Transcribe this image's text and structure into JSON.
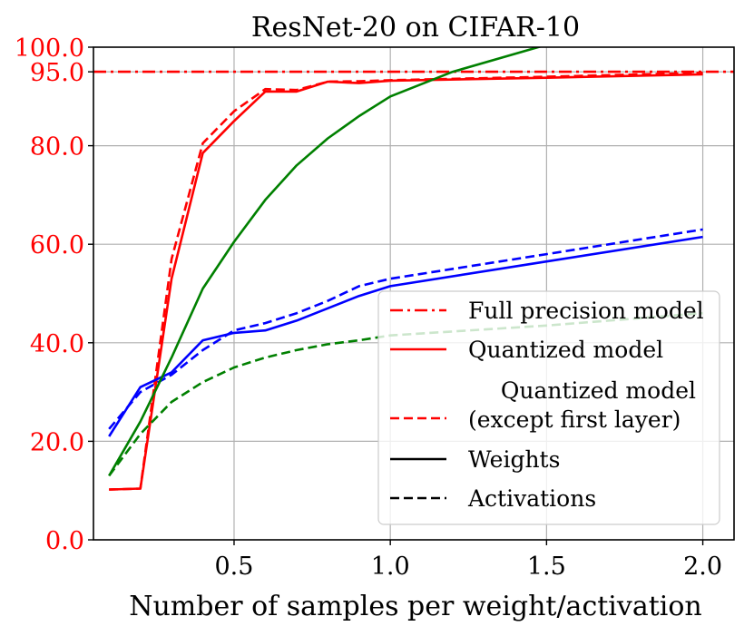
{
  "chart_data": {
    "type": "line",
    "title": "ResNet-20 on CIFAR-10",
    "xlabel": "Number of samples per weight/activation",
    "ylabel": "",
    "xlim": [
      0.05,
      2.1
    ],
    "ylim": [
      0,
      100
    ],
    "grid": true,
    "x_ticks": [
      0.5,
      1.0,
      1.5,
      2.0
    ],
    "x_tick_labels": [
      "0.5",
      "1.0",
      "1.5",
      "2.0"
    ],
    "y_ticks": [
      0,
      20,
      40,
      60,
      80,
      95,
      100
    ],
    "y_tick_labels": [
      "0.0",
      "20.0",
      "40.0",
      "60.0",
      "80.0",
      "95.0",
      "100.0"
    ],
    "y_tick_color": "#ff0000",
    "series": [
      {
        "name": "Full precision model",
        "color": "#ff0000",
        "style": "dashdot",
        "x": [
          0.05,
          2.1
        ],
        "y": [
          95.0,
          95.0
        ]
      },
      {
        "name": "Quantized model",
        "color": "#ff0000",
        "style": "solid",
        "x": [
          0.1,
          0.2,
          0.3,
          0.4,
          0.5,
          0.6,
          0.7,
          0.8,
          0.9,
          1.0,
          1.5,
          2.0
        ],
        "y": [
          10.2,
          10.4,
          53.0,
          78.5,
          85.0,
          91.0,
          91.0,
          93.0,
          92.7,
          93.2,
          93.8,
          94.5
        ]
      },
      {
        "name": "Quantized model (except first layer)",
        "color": "#ff0000",
        "style": "dashed",
        "x": [
          0.1,
          0.2,
          0.3,
          0.4,
          0.5,
          0.6,
          0.7,
          0.8,
          0.9,
          1.0,
          1.5,
          2.0
        ],
        "y": [
          10.2,
          10.4,
          57.0,
          80.5,
          87.0,
          91.5,
          91.3,
          93.0,
          93.1,
          93.3,
          94.0,
          94.8
        ]
      },
      {
        "name": "Weights (blue)",
        "color": "#0000ff",
        "style": "solid",
        "x": [
          0.1,
          0.2,
          0.3,
          0.4,
          0.5,
          0.6,
          0.7,
          0.8,
          0.9,
          1.0,
          1.5,
          2.0
        ],
        "y": [
          21.0,
          31.0,
          34.0,
          40.5,
          42.0,
          42.5,
          44.5,
          47.0,
          49.5,
          51.5,
          56.5,
          61.5
        ]
      },
      {
        "name": "Activations (blue)",
        "color": "#0000ff",
        "style": "dashed",
        "x": [
          0.1,
          0.2,
          0.3,
          0.4,
          0.5,
          0.6,
          0.7,
          0.8,
          0.9,
          1.0,
          1.5,
          2.0
        ],
        "y": [
          22.5,
          30.0,
          33.5,
          38.5,
          42.5,
          44.0,
          46.0,
          48.5,
          51.5,
          53.0,
          58.0,
          63.0
        ]
      },
      {
        "name": "Weights (green)",
        "color": "#008000",
        "style": "solid",
        "x": [
          0.1,
          0.2,
          0.3,
          0.4,
          0.5,
          0.6,
          0.7,
          0.8,
          0.9,
          1.0,
          1.2,
          1.5
        ],
        "y": [
          13.0,
          24.0,
          37.0,
          51.0,
          60.5,
          69.0,
          76.0,
          81.5,
          86.0,
          90.0,
          95.0,
          100.5
        ]
      },
      {
        "name": "Activations (green)",
        "color": "#008000",
        "style": "dashed",
        "x": [
          0.1,
          0.2,
          0.3,
          0.4,
          0.5,
          0.6,
          0.7,
          0.8,
          0.9,
          1.0,
          1.5,
          2.0
        ],
        "y": [
          13.0,
          21.5,
          28.0,
          32.0,
          35.0,
          37.0,
          38.5,
          39.7,
          40.5,
          41.5,
          43.5,
          46.0
        ]
      }
    ],
    "legend": {
      "position": "lower-right",
      "entries": [
        {
          "label": "Full precision model",
          "color": "#ff0000",
          "style": "dashdot"
        },
        {
          "label": "Quantized model",
          "color": "#ff0000",
          "style": "solid"
        },
        {
          "label_line1": "Quantized model",
          "label_line2": "(except first layer)",
          "color": "#ff0000",
          "style": "dashed"
        },
        {
          "label": "Weights",
          "color": "#000000",
          "style": "solid"
        },
        {
          "label": "Activations",
          "color": "#000000",
          "style": "dashed"
        }
      ]
    }
  }
}
